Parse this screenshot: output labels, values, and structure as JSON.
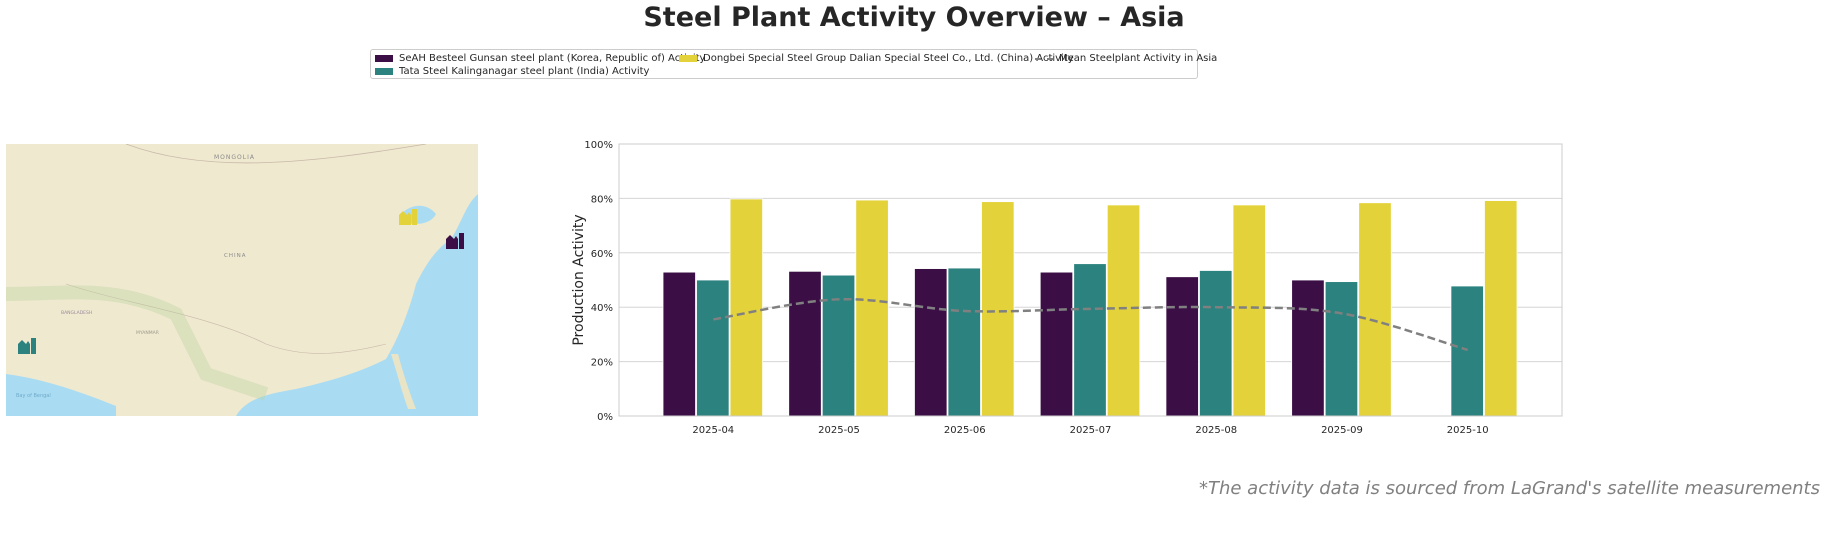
{
  "title": "Steel Plant Activity Overview – Asia",
  "footnote": "*The activity data is sourced from LaGrand's satellite measurements",
  "map": {
    "labels": [
      "MONGOLIA",
      "CHINA",
      "MYANMAR",
      "BANGLADESH",
      "Bay of Bengal"
    ],
    "markers": [
      {
        "plant": "SeAH Besteel Gunsan",
        "color": "#3b0f46",
        "icon": "factory-icon"
      },
      {
        "plant": "Tata Steel Kalinganagar",
        "color": "#2b827e",
        "icon": "factory-icon"
      },
      {
        "plant": "Dongbei Special Steel Dalian",
        "color": "#e3d23a",
        "icon": "factory-icon"
      }
    ]
  },
  "chart_data": {
    "type": "bar",
    "title": "",
    "xlabel": "",
    "ylabel": "Production Activity",
    "ylim": [
      0,
      100
    ],
    "yticks": [
      "0%",
      "20%",
      "40%",
      "60%",
      "80%",
      "100%"
    ],
    "grid": true,
    "legend_position": "top-center",
    "categories": [
      "2025-04",
      "2025-05",
      "2025-06",
      "2025-07",
      "2025-08",
      "2025-09",
      "2025-10"
    ],
    "series": [
      {
        "name": "SeAH Besteel Gunsan steel plant (Korea, Republic of) Activity",
        "color": "#3b0f46",
        "values": [
          52.9,
          53.2,
          54.2,
          52.9,
          51.2,
          50.0,
          null
        ]
      },
      {
        "name": "Tata Steel Kalinganagar steel plant (India) Activity",
        "color": "#2b827e",
        "values": [
          50.0,
          51.8,
          54.4,
          56.0,
          53.5,
          49.4,
          47.8
        ]
      },
      {
        "name": "Dongbei Special Steel Group Dalian Special Steel Co., Ltd. (China) Activity",
        "color": "#e3d23a",
        "values": [
          79.8,
          79.4,
          78.8,
          77.6,
          77.6,
          78.4,
          79.2
        ]
      },
      {
        "name": "Mean Steelplant Activity in Asia",
        "type": "line",
        "style": "dashed",
        "color": "#808080",
        "values": [
          35.5,
          42.9,
          38.6,
          39.4,
          40.0,
          37.7,
          24.3
        ]
      }
    ]
  }
}
